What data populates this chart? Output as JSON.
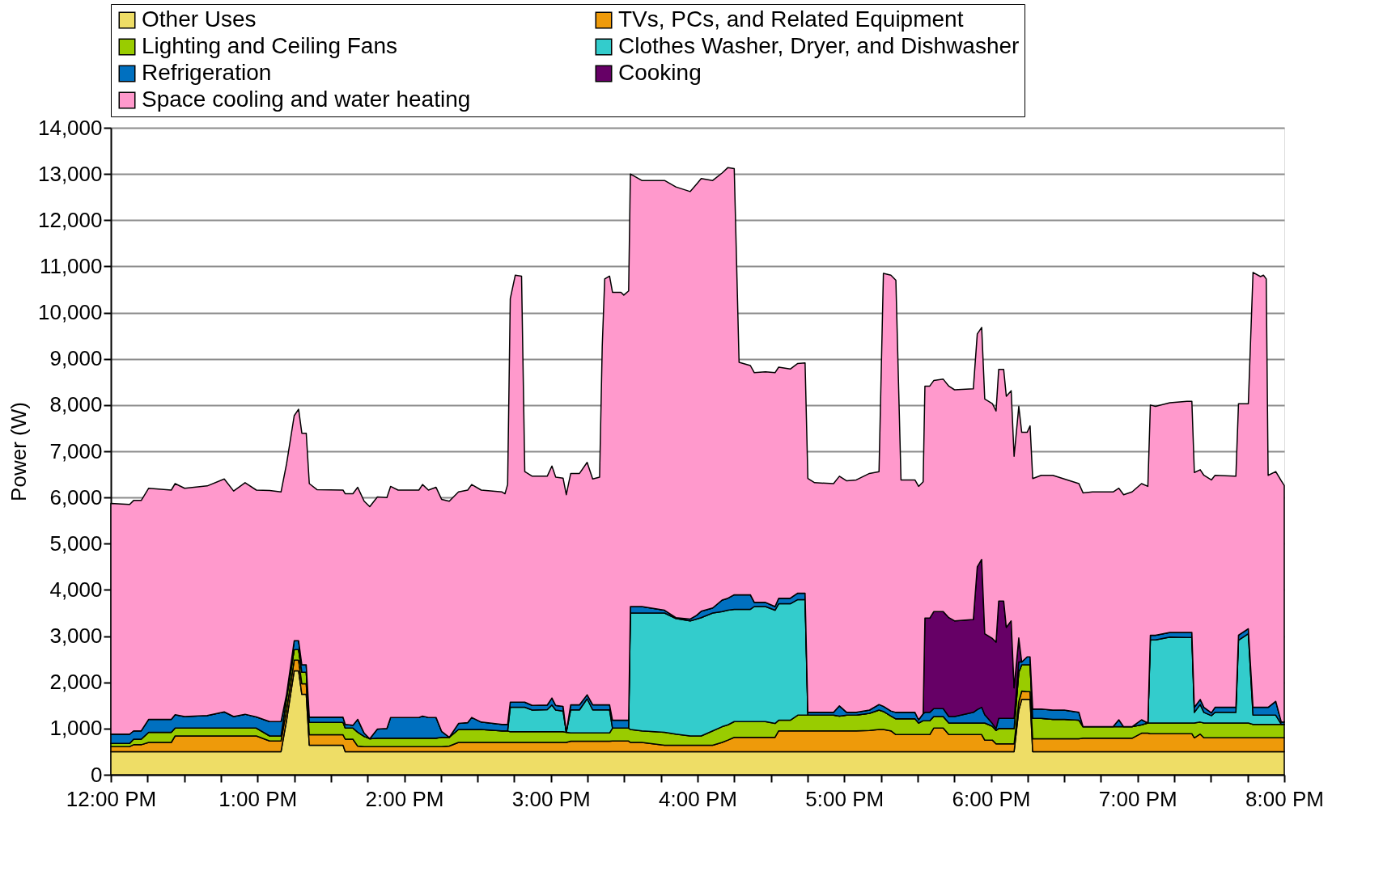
{
  "chart_data": {
    "type": "area",
    "stacked": true,
    "ylabel": "Power (W)",
    "legend": "top",
    "grid": "y",
    "xlim": [
      12,
      20
    ],
    "ylim": [
      0,
      14000
    ],
    "yticks": [
      0,
      {
        "value": 1000,
        "label": "1,000"
      },
      {
        "value": 2000,
        "label": "2,000"
      },
      {
        "value": 3000,
        "label": "3,000"
      },
      {
        "value": 4000,
        "label": "4,000"
      },
      {
        "value": 5000,
        "label": "5,000"
      },
      {
        "value": 6000,
        "label": "6,000"
      },
      {
        "value": 7000,
        "label": "7,000"
      },
      {
        "value": 8000,
        "label": "8,000"
      },
      {
        "value": 9000,
        "label": "9,000"
      },
      {
        "value": 10000,
        "label": "10,000"
      },
      {
        "value": 11000,
        "label": "11,000"
      },
      {
        "value": 12000,
        "label": "12,000"
      },
      {
        "value": 13000,
        "label": "13,000"
      },
      {
        "value": 14000,
        "label": "14,000"
      }
    ],
    "xticks": [
      {
        "value": 12,
        "label": "12:00 PM"
      },
      {
        "value": 12.25,
        "label": null
      },
      {
        "value": 12.5,
        "label": null
      },
      {
        "value": 12.75,
        "label": null
      },
      {
        "value": 13,
        "label": "1:00 PM"
      },
      {
        "value": 13.25,
        "label": null
      },
      {
        "value": 13.5,
        "label": null
      },
      {
        "value": 13.75,
        "label": null
      },
      {
        "value": 14,
        "label": "2:00 PM"
      },
      {
        "value": 14.25,
        "label": null
      },
      {
        "value": 14.5,
        "label": null
      },
      {
        "value": 14.75,
        "label": null
      },
      {
        "value": 15,
        "label": "3:00 PM"
      },
      {
        "value": 15.25,
        "label": null
      },
      {
        "value": 15.5,
        "label": null
      },
      {
        "value": 15.75,
        "label": null
      },
      {
        "value": 16,
        "label": "4:00 PM"
      },
      {
        "value": 16.25,
        "label": null
      },
      {
        "value": 16.5,
        "label": null
      },
      {
        "value": 16.75,
        "label": null
      },
      {
        "value": 17,
        "label": "5:00 PM"
      },
      {
        "value": 17.25,
        "label": null
      },
      {
        "value": 17.5,
        "label": null
      },
      {
        "value": 17.75,
        "label": null
      },
      {
        "value": 18,
        "label": "6:00 PM"
      },
      {
        "value": 18.25,
        "label": null
      },
      {
        "value": 18.5,
        "label": null
      },
      {
        "value": 18.75,
        "label": null
      },
      {
        "value": 19,
        "label": "7:00 PM"
      },
      {
        "value": 19.25,
        "label": null
      },
      {
        "value": 19.5,
        "label": null
      },
      {
        "value": 19.75,
        "label": null
      },
      {
        "value": 20,
        "label": "8:00 PM"
      }
    ],
    "x": [
      12.0,
      12.128,
      12.155,
      12.207,
      12.258,
      12.412,
      12.438,
      12.503,
      12.657,
      12.773,
      12.837,
      12.915,
      12.992,
      13.083,
      13.16,
      13.198,
      13.25,
      13.28,
      13.302,
      13.332,
      13.353,
      13.405,
      13.583,
      13.598,
      13.65,
      13.683,
      13.727,
      13.765,
      13.817,
      13.882,
      13.907,
      13.958,
      14.1,
      14.125,
      14.165,
      14.217,
      14.255,
      14.307,
      14.37,
      14.433,
      14.46,
      14.525,
      14.667,
      14.687,
      14.705,
      14.723,
      14.757,
      14.8,
      14.822,
      14.873,
      14.975,
      15.007,
      15.033,
      15.083,
      15.105,
      15.135,
      15.195,
      15.247,
      15.285,
      15.332,
      15.35,
      15.367,
      15.4,
      15.42,
      15.478,
      15.497,
      15.53,
      15.542,
      15.62,
      15.775,
      15.852,
      15.95,
      15.993,
      16.025,
      16.103,
      16.167,
      16.207,
      16.25,
      16.283,
      16.36,
      16.387,
      16.463,
      16.528,
      16.553,
      16.632,
      16.683,
      16.733,
      16.752,
      16.798,
      16.927,
      16.967,
      17.017,
      17.082,
      17.172,
      17.237,
      17.267,
      17.318,
      17.352,
      17.387,
      17.482,
      17.507,
      17.538,
      17.55,
      17.583,
      17.61,
      17.675,
      17.713,
      17.752,
      17.88,
      17.907,
      17.937,
      17.958,
      18.01,
      18.035,
      18.053,
      18.087,
      18.105,
      18.138,
      18.158,
      18.19,
      18.21,
      18.247,
      18.267,
      18.285,
      18.343,
      18.422,
      18.5,
      18.6,
      18.628,
      18.692,
      18.833,
      18.872,
      18.905,
      18.962,
      19.027,
      19.07,
      19.087,
      19.122,
      19.22,
      19.337,
      19.37,
      19.387,
      19.427,
      19.452,
      19.503,
      19.528,
      19.67,
      19.688,
      19.755,
      19.787,
      19.838,
      19.858,
      19.877,
      19.89,
      19.942,
      19.98,
      20.0
    ],
    "series": [
      {
        "name": "Other Uses",
        "color": "#eedd66",
        "values": [
          500,
          500,
          500,
          500,
          500,
          500,
          500,
          500,
          500,
          500,
          500,
          500,
          500,
          500,
          500,
          1180,
          2250,
          2250,
          1740,
          1740,
          640,
          640,
          640,
          500,
          500,
          500,
          500,
          500,
          500,
          500,
          500,
          500,
          500,
          500,
          500,
          500,
          500,
          500,
          500,
          500,
          500,
          500,
          500,
          500,
          500,
          500,
          500,
          500,
          500,
          500,
          500,
          500,
          500,
          500,
          500,
          500,
          500,
          500,
          500,
          500,
          500,
          500,
          500,
          500,
          500,
          500,
          500,
          500,
          500,
          500,
          500,
          500,
          500,
          500,
          500,
          500,
          500,
          500,
          500,
          500,
          500,
          500,
          500,
          500,
          500,
          500,
          500,
          500,
          500,
          500,
          500,
          500,
          500,
          500,
          500,
          500,
          500,
          500,
          500,
          500,
          500,
          500,
          500,
          500,
          500,
          500,
          500,
          500,
          500,
          500,
          500,
          500,
          500,
          500,
          500,
          500,
          500,
          500,
          500,
          1400,
          1630,
          1630,
          1630,
          500,
          500,
          500,
          500,
          500,
          500,
          500,
          500,
          500,
          500,
          500,
          500,
          500,
          500,
          500,
          500,
          500,
          500,
          500,
          500,
          500,
          500,
          500,
          500,
          500,
          500,
          500,
          500,
          500,
          500,
          500,
          500,
          500,
          500
        ]
      },
      {
        "name": "TVs, PCs, and Related Equipment",
        "color": "#ee9a0a",
        "values": [
          110,
          110,
          150,
          150,
          200,
          200,
          340,
          340,
          340,
          340,
          340,
          340,
          340,
          230,
          230,
          225,
          230,
          230,
          230,
          230,
          225,
          225,
          225,
          270,
          270,
          120,
          110,
          110,
          110,
          110,
          110,
          110,
          110,
          110,
          110,
          110,
          110,
          120,
          200,
          200,
          200,
          200,
          200,
          200,
          200,
          200,
          200,
          200,
          200,
          200,
          200,
          200,
          200,
          200,
          200,
          225,
          225,
          225,
          225,
          225,
          225,
          225,
          225,
          230,
          230,
          230,
          230,
          200,
          200,
          140,
          140,
          140,
          140,
          140,
          140,
          200,
          250,
          310,
          310,
          310,
          310,
          310,
          310,
          450,
          450,
          450,
          450,
          450,
          450,
          450,
          450,
          450,
          450,
          460,
          480,
          480,
          450,
          370,
          370,
          370,
          370,
          370,
          370,
          370,
          510,
          510,
          370,
          370,
          370,
          370,
          370,
          250,
          250,
          170,
          170,
          170,
          170,
          170,
          170,
          180,
          180,
          170,
          170,
          280,
          280,
          280,
          280,
          280,
          290,
          290,
          290,
          290,
          290,
          290,
          400,
          400,
          390,
          390,
          390,
          390,
          390,
          300,
          380,
          300,
          300,
          300,
          300,
          300,
          300,
          300,
          300,
          300,
          300,
          300,
          300,
          300,
          300
        ]
      },
      {
        "name": "Lighting and Ceiling Fans",
        "color": "#99cc00",
        "values": [
          70,
          70,
          120,
          120,
          220,
          220,
          170,
          170,
          170,
          170,
          170,
          170,
          170,
          110,
          110,
          255,
          230,
          230,
          250,
          250,
          270,
          270,
          270,
          240,
          240,
          300,
          220,
          170,
          180,
          180,
          180,
          180,
          180,
          180,
          180,
          180,
          200,
          190,
          280,
          280,
          280,
          280,
          250,
          250,
          250,
          230,
          230,
          230,
          230,
          230,
          230,
          230,
          230,
          230,
          220,
          180,
          180,
          180,
          180,
          180,
          180,
          180,
          180,
          280,
          280,
          280,
          280,
          280,
          250,
          280,
          240,
          200,
          200,
          200,
          310,
          340,
          330,
          340,
          340,
          340,
          340,
          340,
          300,
          230,
          230,
          340,
          340,
          340,
          340,
          340,
          320,
          340,
          340,
          370,
          420,
          390,
          320,
          340,
          340,
          340,
          250,
          300,
          300,
          300,
          250,
          250,
          250,
          250,
          250,
          250,
          250,
          370,
          300,
          290,
          330,
          330,
          330,
          330,
          330,
          640,
          570,
          580,
          580,
          440,
          440,
          420,
          420,
          400,
          250,
          250,
          250,
          250,
          250,
          250,
          180,
          220,
          230,
          230,
          230,
          230,
          230,
          320,
          260,
          320,
          320,
          320,
          320,
          320,
          320,
          290,
          290,
          290,
          290,
          290,
          290,
          290,
          290
        ]
      },
      {
        "name": "Clothes Washer, Dryer, and Dishwasher",
        "color": "#33cccc",
        "values": [
          0,
          0,
          0,
          0,
          0,
          0,
          0,
          0,
          0,
          0,
          0,
          0,
          0,
          0,
          0,
          0,
          0,
          0,
          0,
          0,
          0,
          0,
          0,
          0,
          0,
          0,
          0,
          0,
          0,
          0,
          0,
          0,
          0,
          0,
          0,
          0,
          0,
          0,
          0,
          0,
          0,
          0,
          0,
          0,
          0,
          530,
          530,
          530,
          530,
          470,
          480,
          580,
          470,
          450,
          0,
          500,
          500,
          740,
          500,
          500,
          500,
          500,
          500,
          0,
          0,
          0,
          0,
          2520,
          2550,
          2580,
          2500,
          2490,
          2530,
          2560,
          2550,
          2490,
          2480,
          2430,
          2430,
          2430,
          2490,
          2490,
          2450,
          2520,
          2520,
          2500,
          2500,
          0,
          0,
          0,
          0,
          0,
          0,
          0,
          0,
          0,
          0,
          0,
          0,
          0,
          0,
          0,
          0,
          0,
          0,
          0,
          0,
          0,
          0,
          0,
          0,
          0,
          0,
          0,
          0,
          0,
          0,
          0,
          0,
          0,
          0,
          0,
          0,
          0,
          0,
          0,
          0,
          0,
          0,
          0,
          0,
          0,
          0,
          0,
          0,
          0,
          1800,
          1800,
          1860,
          1850,
          1850,
          230,
          380,
          230,
          160,
          230,
          230,
          1790,
          1930,
          200,
          200,
          200,
          200,
          200,
          200,
          0,
          0
        ]
      },
      {
        "name": "Refrigeration",
        "color": "#0070c0",
        "values": [
          200,
          200,
          180,
          180,
          280,
          280,
          290,
          250,
          270,
          350,
          250,
          300,
          240,
          310,
          310,
          85,
          190,
          190,
          160,
          160,
          110,
          110,
          110,
          80,
          60,
          280,
          70,
          0,
          200,
          210,
          450,
          450,
          450,
          480,
          450,
          450,
          130,
          0,
          130,
          150,
          260,
          160,
          140,
          140,
          140,
          110,
          110,
          110,
          110,
          100,
          100,
          150,
          100,
          100,
          0,
          110,
          110,
          85,
          110,
          110,
          110,
          110,
          110,
          170,
          170,
          170,
          170,
          140,
          140,
          60,
          20,
          40,
          80,
          140,
          110,
          250,
          260,
          315,
          315,
          315,
          90,
          90,
          80,
          120,
          120,
          140,
          140,
          60,
          60,
          60,
          220,
          60,
          60,
          70,
          120,
          110,
          110,
          140,
          140,
          140,
          70,
          150,
          180,
          180,
          170,
          170,
          140,
          140,
          230,
          290,
          340,
          180,
          60,
          40,
          220,
          220,
          220,
          220,
          220,
          220,
          60,
          170,
          170,
          200,
          200,
          200,
          200,
          170,
          0,
          0,
          0,
          150,
          0,
          0,
          110,
          0,
          100,
          100,
          100,
          110,
          110,
          110,
          110,
          110,
          60,
          110,
          110,
          110,
          110,
          170,
          170,
          170,
          170,
          170,
          300,
          50,
          50
        ]
      },
      {
        "name": "Cooking",
        "color": "#660066",
        "values": [
          0,
          0,
          0,
          0,
          0,
          0,
          0,
          0,
          0,
          0,
          0,
          0,
          0,
          0,
          0,
          0,
          0,
          0,
          0,
          0,
          0,
          0,
          0,
          0,
          0,
          0,
          0,
          0,
          0,
          0,
          0,
          0,
          0,
          0,
          0,
          0,
          0,
          0,
          0,
          0,
          0,
          0,
          0,
          0,
          0,
          0,
          0,
          0,
          0,
          0,
          0,
          0,
          0,
          0,
          0,
          0,
          0,
          0,
          0,
          0,
          0,
          0,
          0,
          0,
          0,
          0,
          0,
          0,
          0,
          0,
          0,
          0,
          0,
          0,
          0,
          0,
          0,
          0,
          0,
          0,
          0,
          0,
          0,
          0,
          0,
          0,
          0,
          0,
          0,
          0,
          0,
          0,
          0,
          0,
          0,
          0,
          0,
          0,
          0,
          0,
          0,
          0,
          2040,
          2040,
          2100,
          2100,
          2140,
          2070,
          2010,
          3090,
          3200,
          1750,
          1840,
          1870,
          2540,
          2540,
          1970,
          2110,
          660,
          520,
          0,
          0,
          0,
          0,
          0,
          0,
          0,
          0,
          0,
          0,
          0,
          0,
          0,
          0,
          0,
          0,
          0,
          0,
          0,
          0,
          0,
          0,
          0,
          0,
          0,
          0,
          0,
          0,
          0,
          0,
          0,
          0,
          0,
          0,
          0,
          0,
          0
        ]
      },
      {
        "name": "Space cooling and water heating",
        "color": "#ff99cc",
        "values": [
          4990,
          4970,
          4985,
          4985,
          5000,
          4960,
          5000,
          4940,
          4970,
          5040,
          4880,
          5010,
          4910,
          5000,
          4970,
          4985,
          4870,
          5010,
          5010,
          5010,
          5055,
          4925,
          4915,
          4990,
          5010,
          5020,
          5020,
          5020,
          5020,
          5000,
          5000,
          4920,
          4920,
          5010,
          4920,
          4980,
          5020,
          5110,
          5010,
          5030,
          5040,
          5020,
          5030,
          4990,
          5190,
          8730,
          9240,
          9220,
          4990,
          4960,
          4950,
          5020,
          4940,
          4940,
          5140,
          5005,
          5005,
          5030,
          4885,
          4925,
          7745,
          9215,
          9275,
          9260,
          9260,
          9200,
          9290,
          9360,
          9220,
          9300,
          9320,
          9250,
          9330,
          9360,
          9250,
          9240,
          9320,
          9220,
          5030,
          4960,
          4970,
          4990,
          5060,
          5000,
          4960,
          4970,
          4980,
          5060,
          4970,
          4950,
          4970,
          5010,
          5030,
          5120,
          5040,
          9370,
          9430,
          9350,
          5030,
          5030,
          5050,
          5020,
          5020,
          5020,
          5000,
          5030,
          5010,
          5000,
          4990,
          5040,
          5020,
          5080,
          5080,
          5000,
          5010,
          5010,
          5000,
          4980,
          5010,
          5010,
          4970,
          4860,
          5000,
          4990,
          5060,
          5080,
          5000,
          4950,
          5060,
          5080,
          5080,
          5010,
          5020,
          5080,
          5110,
          5120,
          4980,
          4950,
          4970,
          5000,
          5000,
          5080,
          4970,
          5020,
          5040,
          5020,
          5000,
          5010,
          4870,
          9410,
          9320,
          9350,
          9270,
          5020,
          4970,
          5220,
          5120
        ]
      }
    ]
  }
}
